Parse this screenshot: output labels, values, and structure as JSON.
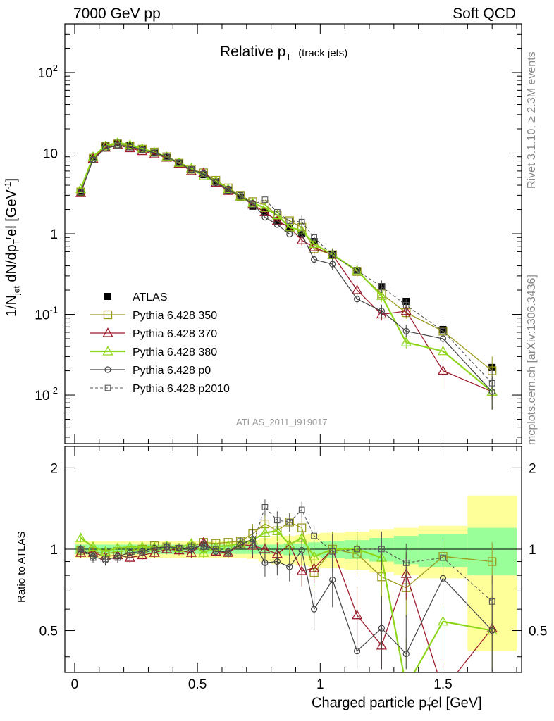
{
  "header": {
    "left": "7000 GeV pp",
    "right": "Soft QCD"
  },
  "main_title": {
    "text": "Relative p",
    "sub": "T",
    "suffix": "(track jets)"
  },
  "side_labels": {
    "rivet": "Rivet 3.1.10, ≥ 2.3M events",
    "mcplots": "mcplots.cern.ch [arXiv:1306.3436]"
  },
  "analysis_id": "ATLAS_2011_I919017",
  "axes": {
    "top_ylabel": "1/N_jet dN/dp_T^rel [GeV^-1]",
    "bottom_ylabel": "Ratio to ATLAS",
    "xlabel": "Charged particle p_T^rel [GeV]",
    "top_ytick_labels": [
      "10^-2",
      "10^-1",
      "1",
      "10",
      "10^2"
    ],
    "bottom_ytick_labels": [
      "0.5",
      "1",
      "2"
    ],
    "xtick_labels": [
      "0",
      "0.5",
      "1",
      "1.5"
    ]
  },
  "legend": [
    {
      "label": "ATLAS"
    },
    {
      "label": "Pythia 6.428 350"
    },
    {
      "label": "Pythia 6.428 370"
    },
    {
      "label": "Pythia 6.428 380"
    },
    {
      "label": "Pythia 6.428 p0"
    },
    {
      "label": "Pythia 6.428 p2010"
    }
  ],
  "colors": {
    "atlas": "#000000",
    "p350": "#9a9a1f",
    "p370": "#9b1c2c",
    "p380": "#8ed61b",
    "p0": "#444444",
    "p2010": "#555555",
    "band_outer": "#ffff99",
    "band_inner": "#99ff99"
  },
  "chart_data": {
    "type": "line",
    "top_yscale": "log",
    "top_ylim": [
      0.0025,
      400
    ],
    "bottom_ylim": [
      0.35,
      2.4
    ],
    "xlim": [
      -0.04,
      1.82
    ],
    "bins_x": [
      0.025,
      0.075,
      0.125,
      0.175,
      0.225,
      0.275,
      0.325,
      0.375,
      0.425,
      0.475,
      0.525,
      0.575,
      0.625,
      0.675,
      0.725,
      0.775,
      0.825,
      0.875,
      0.925,
      0.975,
      1.05,
      1.15,
      1.25,
      1.35,
      1.5,
      1.7
    ],
    "series": [
      {
        "key": "atlas",
        "name": "ATLAS",
        "values": [
          3.3,
          8.8,
          12.5,
          13.3,
          12.4,
          11.2,
          10.0,
          8.8,
          7.5,
          6.2,
          5.4,
          4.4,
          3.5,
          2.8,
          2.2,
          1.85,
          1.45,
          1.15,
          1.0,
          0.8,
          0.55,
          0.35,
          0.22,
          0.145,
          0.065,
          0.022
        ]
      },
      {
        "key": "p350",
        "name": "Pythia 6.428 350",
        "values": [
          3.3,
          8.6,
          12.0,
          13.0,
          12.3,
          11.2,
          10.3,
          9.0,
          7.5,
          6.3,
          5.7,
          4.6,
          3.7,
          3.0,
          2.5,
          2.3,
          1.7,
          1.45,
          1.2,
          0.65,
          0.55,
          0.34,
          0.18,
          0.105,
          0.062,
          0.02
        ]
      },
      {
        "key": "p370",
        "name": "Pythia 6.428 370",
        "values": [
          3.2,
          8.5,
          11.7,
          12.6,
          11.5,
          10.6,
          9.7,
          8.8,
          7.4,
          6.0,
          5.7,
          4.3,
          3.4,
          2.9,
          2.3,
          1.85,
          1.45,
          1.2,
          0.83,
          0.68,
          0.55,
          0.2,
          0.1,
          0.11,
          0.02,
          0.011
        ]
      },
      {
        "key": "p380",
        "name": "Pythia 6.428 380",
        "values": [
          3.6,
          9.0,
          12.3,
          13.5,
          12.7,
          11.4,
          10.2,
          9.0,
          7.6,
          6.5,
          5.2,
          4.5,
          3.6,
          2.9,
          2.4,
          2.1,
          1.7,
          1.2,
          1.1,
          0.75,
          0.55,
          0.35,
          0.17,
          0.045,
          0.035,
          0.011
        ]
      },
      {
        "key": "p0",
        "name": "Pythia 6.428 p0",
        "values": [
          3.3,
          8.3,
          11.4,
          12.5,
          12.1,
          11.0,
          10.1,
          9.0,
          7.6,
          6.2,
          5.6,
          4.3,
          3.6,
          2.9,
          2.4,
          1.6,
          1.3,
          0.99,
          0.99,
          0.48,
          0.42,
          0.155,
          0.11,
          0.062,
          0.05,
          0.011
        ]
      },
      {
        "key": "p2010",
        "name": "Pythia 6.428 p2010",
        "values": [
          3.3,
          8.2,
          11.5,
          12.4,
          11.8,
          10.9,
          9.9,
          9.0,
          7.6,
          6.3,
          5.5,
          4.4,
          3.4,
          3.0,
          2.3,
          2.65,
          1.85,
          1.45,
          1.4,
          0.9,
          0.54,
          0.35,
          0.22,
          0.13,
          0.062,
          0.014
        ]
      }
    ],
    "ratio_series": [
      {
        "key": "p350",
        "values": [
          0.99,
          0.98,
          0.96,
          0.98,
          0.99,
          1.0,
          1.03,
          1.02,
          1.0,
          1.02,
          1.06,
          1.05,
          1.06,
          1.07,
          1.14,
          1.24,
          1.17,
          1.26,
          1.2,
          0.82,
          1.0,
          0.96,
          0.79,
          0.72,
          0.94,
          0.9
        ]
      },
      {
        "key": "p370",
        "values": [
          0.97,
          0.97,
          0.94,
          0.95,
          0.93,
          0.95,
          0.97,
          1.0,
          0.99,
          0.97,
          1.06,
          0.98,
          0.97,
          1.04,
          1.03,
          1.0,
          0.96,
          1.04,
          0.83,
          0.85,
          1.0,
          0.57,
          0.44,
          0.81,
          0.3,
          0.51
        ]
      },
      {
        "key": "p380",
        "values": [
          1.1,
          1.02,
          0.98,
          1.01,
          1.02,
          1.02,
          1.02,
          1.03,
          1.01,
          1.05,
          0.97,
          1.02,
          1.03,
          1.05,
          1.08,
          1.15,
          1.17,
          1.04,
          1.1,
          0.94,
          1.0,
          1.0,
          0.93,
          0.31,
          0.54,
          0.5
        ]
      },
      {
        "key": "p0",
        "values": [
          1.0,
          0.94,
          0.91,
          0.94,
          0.97,
          0.98,
          1.01,
          1.02,
          1.01,
          1.0,
          1.04,
          0.98,
          0.98,
          1.04,
          1.09,
          0.89,
          0.9,
          0.86,
          0.99,
          0.6,
          0.77,
          0.42,
          0.51,
          0.41,
          0.78,
          0.5
        ]
      },
      {
        "key": "p2010",
        "values": [
          0.99,
          0.93,
          0.92,
          0.93,
          0.95,
          0.97,
          0.99,
          1.02,
          1.01,
          1.02,
          1.02,
          1.0,
          0.97,
          1.07,
          1.04,
          1.43,
          1.28,
          1.26,
          1.4,
          1.12,
          0.98,
          1.0,
          1.0,
          0.89,
          0.93,
          0.64
        ]
      }
    ],
    "ratio_band_halfwidth": {
      "inner": [
        0.04,
        0.04,
        0.04,
        0.04,
        0.04,
        0.04,
        0.04,
        0.04,
        0.04,
        0.04,
        0.04,
        0.04,
        0.04,
        0.04,
        0.04,
        0.04,
        0.04,
        0.05,
        0.05,
        0.06,
        0.07,
        0.08,
        0.1,
        0.12,
        0.14,
        0.2
      ],
      "outer": [
        0.07,
        0.07,
        0.07,
        0.07,
        0.07,
        0.07,
        0.07,
        0.07,
        0.07,
        0.07,
        0.07,
        0.07,
        0.07,
        0.07,
        0.08,
        0.1,
        0.12,
        0.12,
        0.13,
        0.14,
        0.15,
        0.16,
        0.18,
        0.2,
        0.22,
        0.58
      ]
    }
  }
}
